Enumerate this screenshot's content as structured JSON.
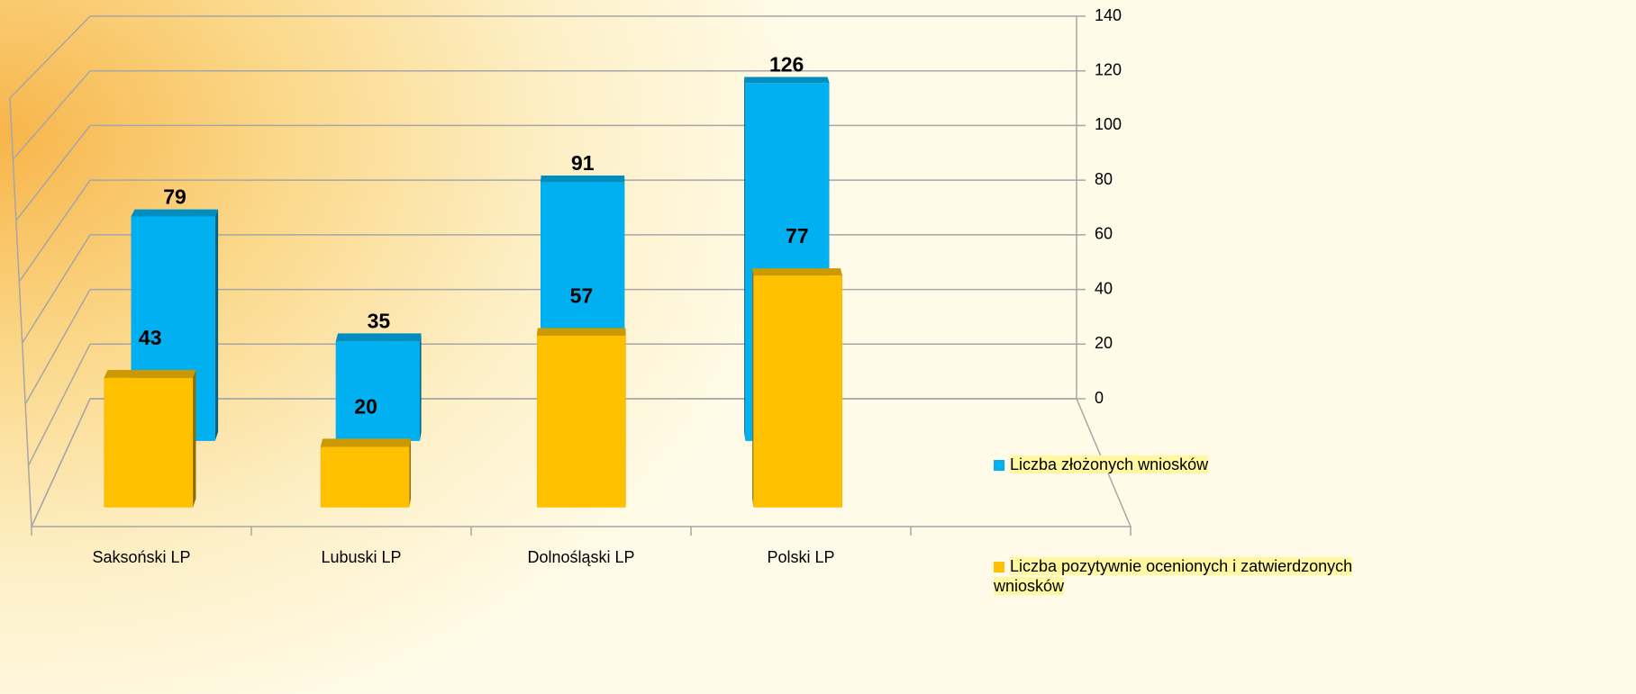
{
  "chart_data": {
    "type": "bar3d",
    "categories": [
      "Saksoński LP",
      "Lubuski  LP",
      "Dolnośląski LP",
      "Polski LP",
      null
    ],
    "series": [
      {
        "name": "Liczba złożonych wniosków",
        "color": "#00b0f0",
        "values": [
          79,
          35,
          91,
          126,
          null
        ]
      },
      {
        "name": "Liczba pozytywnie ocenionych i zatwierdzonych wniosków",
        "color": "#ffc000",
        "values": [
          43,
          20,
          57,
          77,
          null
        ]
      }
    ],
    "ylim": [
      0,
      140
    ],
    "yticks": [
      0,
      20,
      40,
      60,
      80,
      100,
      120,
      140
    ],
    "grid": true,
    "legend": "right"
  }
}
